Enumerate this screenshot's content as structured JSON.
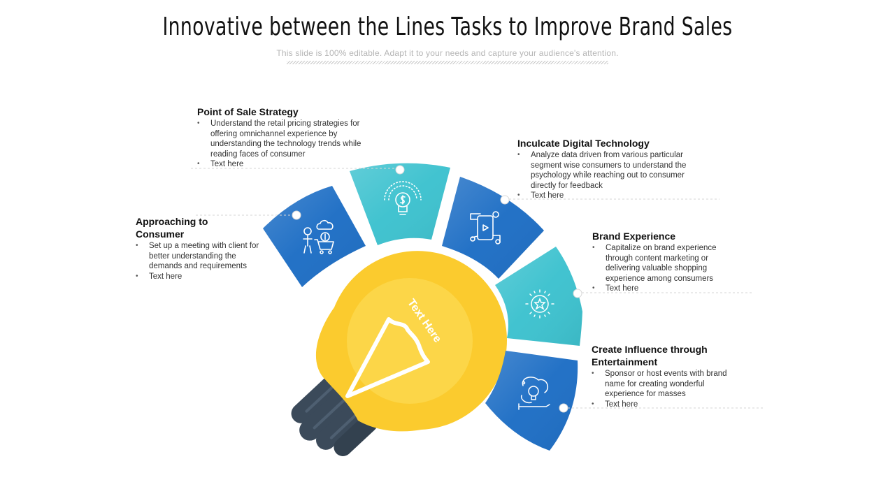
{
  "title": "Innovative between the Lines Tasks to Improve Brand Sales",
  "subtitle": "This slide is 100% editable. Adapt it to your needs and capture your audience's attention.",
  "bulb": {
    "label": "Text Here",
    "colors": {
      "glass": "#FBCB2E",
      "glass_inner": "#FCD84C",
      "base": "#3B4A5A",
      "filament": "#ffffff"
    }
  },
  "colors": {
    "blue": "#1F6FC5",
    "teal": "#3EC2CF"
  },
  "segments": [
    {
      "name": "approaching-to-consumer",
      "icon": "shopping-cart-money-icon",
      "color": "blue"
    },
    {
      "name": "point-of-sale-strategy",
      "icon": "idea-dollar-bulb-icon",
      "color": "teal"
    },
    {
      "name": "inculcate-digital-technology",
      "icon": "digital-video-device-icon",
      "color": "blue"
    },
    {
      "name": "brand-experience",
      "icon": "star-burst-icon",
      "color": "teal"
    },
    {
      "name": "create-influence-entertainment",
      "icon": "idea-pencil-icon",
      "color": "blue"
    }
  ],
  "blocks": {
    "point_of_sale": {
      "heading": "Point of Sale Strategy",
      "bullets": [
        "Understand the retail pricing strategies for offering omnichannel experience by understanding the technology trends while reading faces of consumer",
        "Text here"
      ]
    },
    "approaching": {
      "heading": "Approaching to Consumer",
      "bullets": [
        "Set up a meeting with client for better understanding the demands and requirements",
        "Text here"
      ]
    },
    "digital": {
      "heading": "Inculcate Digital Technology",
      "bullets": [
        "Analyze data driven from various particular segment wise consumers to understand the psychology while reaching out to consumer directly for feedback",
        "Text here"
      ]
    },
    "brand": {
      "heading": "Brand Experience",
      "bullets": [
        "Capitalize on brand experience through content marketing or delivering valuable shopping experience among consumers",
        "Text here"
      ]
    },
    "influence": {
      "heading": "Create Influence through Entertainment",
      "bullets": [
        "Sponsor or host events with brand name for creating wonderful experience for masses",
        "Text here"
      ]
    }
  }
}
